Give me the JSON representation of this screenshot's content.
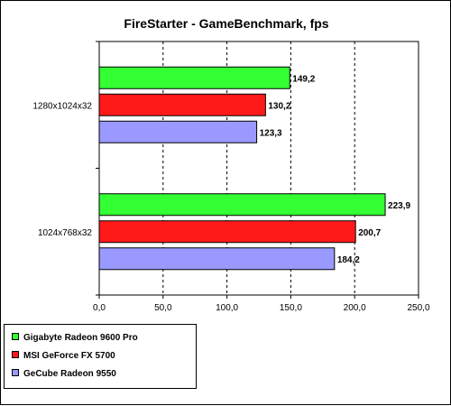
{
  "chart_data": {
    "type": "bar",
    "orientation": "horizontal",
    "title": "FireStarter - GameBenchmark, fps",
    "categories": [
      "1280x1024x32",
      "1024x768x32"
    ],
    "series": [
      {
        "name": "Gigabyte Radeon 9600 Pro",
        "color": "#33ff33",
        "values": [
          149.2,
          223.9
        ],
        "labels": [
          "149,2",
          "223,9"
        ]
      },
      {
        "name": "MSI GeForce FX 5700",
        "color": "#ff1a1a",
        "values": [
          130.2,
          200.7
        ],
        "labels": [
          "130,2",
          "200,7"
        ]
      },
      {
        "name": "GeCube Radeon 9550",
        "color": "#9999ff",
        "values": [
          123.3,
          184.2
        ],
        "labels": [
          "123,3",
          "184,2"
        ]
      }
    ],
    "xlim": [
      0,
      250
    ],
    "xticks": [
      0,
      50,
      100,
      150,
      200,
      250
    ],
    "xtick_labels": [
      "0,0",
      "50,0",
      "100,0",
      "150,0",
      "200,0",
      "250,0"
    ],
    "grid": "vertical dashed",
    "legend_position": "bottom-left"
  }
}
